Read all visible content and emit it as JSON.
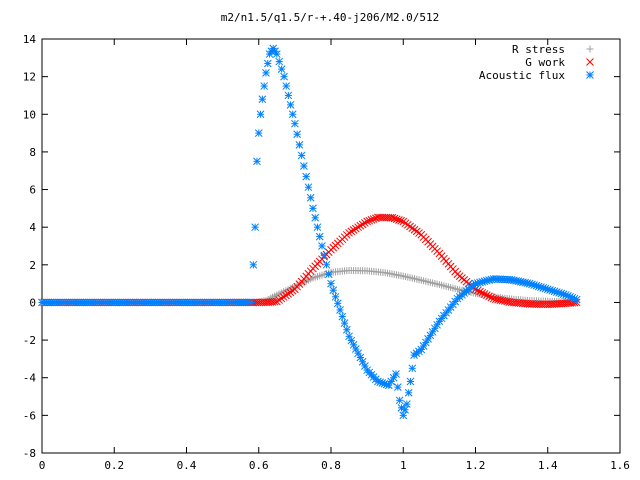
{
  "chart_data": {
    "type": "scatter",
    "title": "m2/n1.5/q1.5/r-+.40-j206/M2.0/512",
    "xlabel": "",
    "ylabel": "",
    "xlim": [
      0,
      1.6
    ],
    "ylim": [
      -8,
      14
    ],
    "x_ticks": [
      0,
      0.2,
      0.4,
      0.6,
      0.8,
      1,
      1.2,
      1.4,
      1.6
    ],
    "x_tick_labels": [
      "0",
      "0.2",
      "0.4",
      "0.6",
      "0.8",
      "1",
      "1.2",
      "1.4",
      "1.6"
    ],
    "y_ticks": [
      -8,
      -6,
      -4,
      -2,
      0,
      2,
      4,
      6,
      8,
      10,
      12,
      14
    ],
    "y_tick_labels": [
      "-8",
      "-6",
      "-4",
      "-2",
      "0",
      "2",
      "4",
      "6",
      "8",
      "10",
      "12",
      "14"
    ],
    "grid": false,
    "legend_position": "top-right",
    "series": [
      {
        "name": "R stress",
        "marker": "plus",
        "color": "#a0a0a0",
        "points": [
          [
            0,
            0
          ],
          [
            0.1,
            0
          ],
          [
            0.2,
            0
          ],
          [
            0.3,
            0
          ],
          [
            0.4,
            0
          ],
          [
            0.5,
            0
          ],
          [
            0.59,
            0
          ],
          [
            0.62,
            0.1
          ],
          [
            0.65,
            0.4
          ],
          [
            0.7,
            0.85
          ],
          [
            0.75,
            1.3
          ],
          [
            0.8,
            1.6
          ],
          [
            0.85,
            1.7
          ],
          [
            0.9,
            1.68
          ],
          [
            0.95,
            1.58
          ],
          [
            1.0,
            1.4
          ],
          [
            1.05,
            1.18
          ],
          [
            1.1,
            0.95
          ],
          [
            1.15,
            0.7
          ],
          [
            1.2,
            0.48
          ],
          [
            1.25,
            0.3
          ],
          [
            1.3,
            0.18
          ],
          [
            1.35,
            0.1
          ],
          [
            1.4,
            0.06
          ],
          [
            1.45,
            0.04
          ],
          [
            1.48,
            0.03
          ]
        ]
      },
      {
        "name": "G work",
        "marker": "cross",
        "color": "#ff0000",
        "points": [
          [
            0,
            0
          ],
          [
            0.1,
            0
          ],
          [
            0.2,
            0
          ],
          [
            0.3,
            0
          ],
          [
            0.4,
            0
          ],
          [
            0.5,
            0
          ],
          [
            0.59,
            0
          ],
          [
            0.62,
            0
          ],
          [
            0.65,
            0.05
          ],
          [
            0.7,
            0.7
          ],
          [
            0.75,
            1.8
          ],
          [
            0.8,
            2.8
          ],
          [
            0.85,
            3.7
          ],
          [
            0.9,
            4.3
          ],
          [
            0.93,
            4.52
          ],
          [
            0.97,
            4.5
          ],
          [
            1.0,
            4.3
          ],
          [
            1.05,
            3.6
          ],
          [
            1.1,
            2.6
          ],
          [
            1.15,
            1.5
          ],
          [
            1.2,
            0.7
          ],
          [
            1.25,
            0.2
          ],
          [
            1.3,
            0
          ],
          [
            1.35,
            -0.08
          ],
          [
            1.4,
            -0.1
          ],
          [
            1.45,
            -0.05
          ],
          [
            1.48,
            0
          ]
        ]
      },
      {
        "name": "Acoustic flux",
        "marker": "star",
        "color": "#0080ff",
        "points": [
          [
            0,
            0
          ],
          [
            0.1,
            0
          ],
          [
            0.2,
            0
          ],
          [
            0.3,
            0
          ],
          [
            0.4,
            0
          ],
          [
            0.5,
            0
          ],
          [
            0.58,
            0
          ],
          [
            0.59,
            4.0
          ],
          [
            0.595,
            7.5
          ],
          [
            0.6,
            9.0
          ],
          [
            0.605,
            10.0
          ],
          [
            0.61,
            10.8
          ],
          [
            0.62,
            12.2
          ],
          [
            0.63,
            13.2
          ],
          [
            0.64,
            13.5
          ],
          [
            0.65,
            13.2
          ],
          [
            0.67,
            12.0
          ],
          [
            0.7,
            9.5
          ],
          [
            0.75,
            5.0
          ],
          [
            0.8,
            1.0
          ],
          [
            0.85,
            -1.8
          ],
          [
            0.9,
            -3.6
          ],
          [
            0.93,
            -4.2
          ],
          [
            0.96,
            -4.4
          ],
          [
            0.98,
            -3.8
          ],
          [
            0.99,
            -5.2
          ],
          [
            1.0,
            -6.0
          ],
          [
            1.01,
            -5.4
          ],
          [
            1.02,
            -4.2
          ],
          [
            1.03,
            -2.8
          ],
          [
            1.05,
            -2.5
          ],
          [
            1.1,
            -1.0
          ],
          [
            1.15,
            0.2
          ],
          [
            1.2,
            1.0
          ],
          [
            1.25,
            1.25
          ],
          [
            1.3,
            1.2
          ],
          [
            1.35,
            1.0
          ],
          [
            1.4,
            0.7
          ],
          [
            1.45,
            0.4
          ],
          [
            1.48,
            0.15
          ]
        ]
      }
    ]
  }
}
